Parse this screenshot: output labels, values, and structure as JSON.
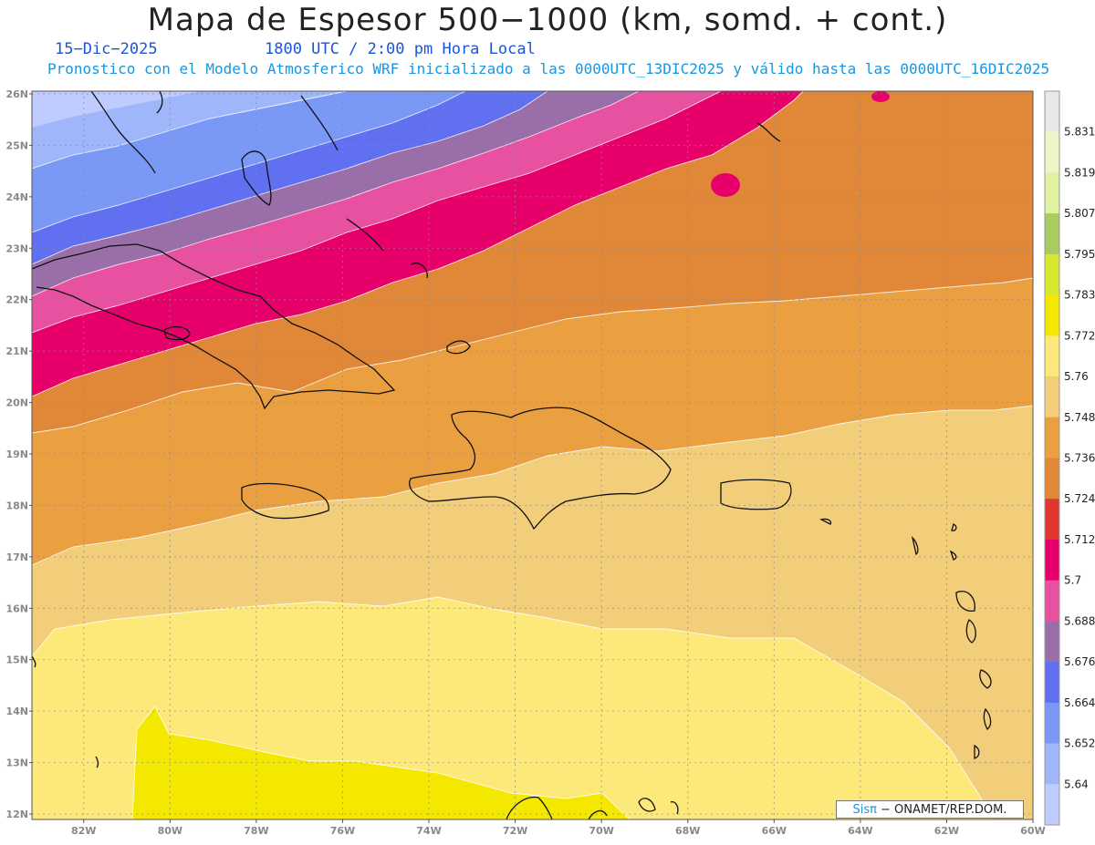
{
  "header": {
    "title": "Mapa de Espesor 500−1000 (km, somd. + cont.)",
    "date": "15−Dic−2025",
    "time": "1800 UTC / 2:00 pm Hora Local",
    "model_line": "Pronostico con el Modelo Atmosferico WRF inicializado a las 0000UTC_13DIC2025 y válido hasta las  0000UTC_16DIC2025"
  },
  "map": {
    "lat_labels": [
      "26N",
      "25N",
      "24N",
      "23N",
      "22N",
      "21N",
      "20N",
      "19N",
      "18N",
      "17N",
      "16N",
      "15N",
      "14N",
      "13N",
      "12N"
    ],
    "lon_labels": [
      "82W",
      "80W",
      "78W",
      "76W",
      "74W",
      "72W",
      "70W",
      "68W",
      "66W",
      "64W",
      "62W",
      "60W"
    ],
    "lat_range": [
      12,
      26
    ],
    "lon_range": [
      -83.2,
      -60
    ],
    "grid": "dotted"
  },
  "colorbar": {
    "labels": [
      "5.831",
      "5.819",
      "5.807",
      "5.795",
      "5.783",
      "5.772",
      "5.76",
      "5.748",
      "5.736",
      "5.724",
      "5.712",
      "5.7",
      "5.688",
      "5.676",
      "5.664",
      "5.652",
      "5.64"
    ],
    "colors": [
      "#e8e8e8",
      "#f0f5c8",
      "#e0f2a0",
      "#a8cc60",
      "#d8e830",
      "#f5e800",
      "#fde97a",
      "#f2cd7a",
      "#eaa040",
      "#e08838",
      "#e03830",
      "#e8006a",
      "#e850a0",
      "#9a6ea8",
      "#6070f0",
      "#7a98f5",
      "#a0b6fa",
      "#c0ccff"
    ]
  },
  "credit": {
    "sis": "Sisπ",
    "org": "− ONAMET/REP.DOM."
  }
}
